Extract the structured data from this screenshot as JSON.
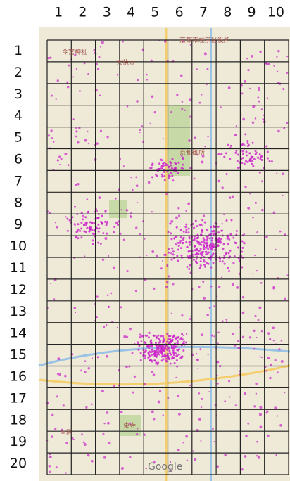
{
  "grid": {
    "columns": [
      1,
      2,
      3,
      4,
      5,
      6,
      7,
      8,
      9,
      10
    ],
    "rows": [
      1,
      2,
      3,
      4,
      5,
      6,
      7,
      8,
      9,
      10,
      11,
      12,
      13,
      14,
      15,
      16,
      17,
      18,
      19,
      20
    ]
  },
  "map_labels": {
    "ward_office": "京都市左京区役所",
    "temple": "大徳寺",
    "shrine": "今宮神社",
    "palace": "京都御所",
    "south_ward": "南区",
    "east_temple": "東寺",
    "brand": "Google"
  }
}
